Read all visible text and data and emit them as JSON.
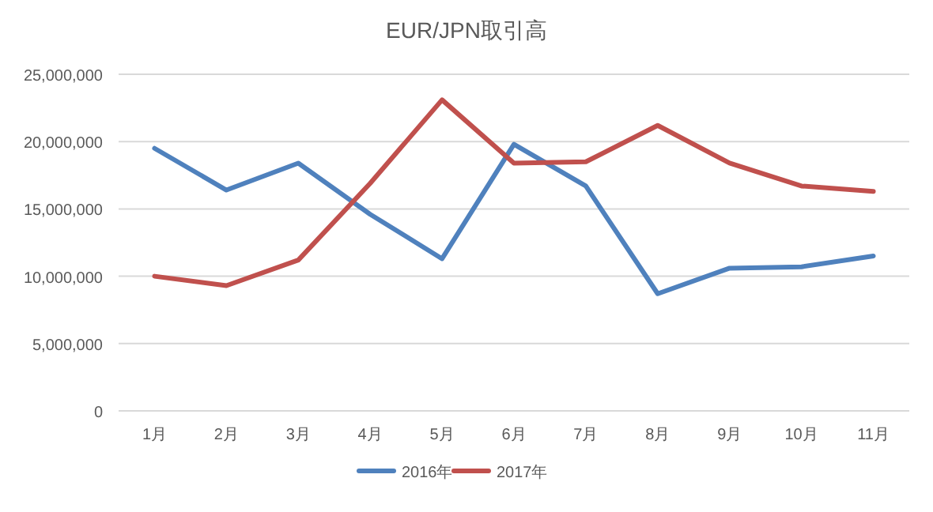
{
  "chart_data": {
    "type": "line",
    "title": "EUR/JPN取引高",
    "categories": [
      "1月",
      "2月",
      "3月",
      "4月",
      "5月",
      "6月",
      "7月",
      "8月",
      "9月",
      "10月",
      "11月"
    ],
    "series": [
      {
        "name": "2016年",
        "color": "#4f81bd",
        "values": [
          19500000,
          16400000,
          18400000,
          14600000,
          11300000,
          19800000,
          16700000,
          8700000,
          10600000,
          10700000,
          11500000
        ]
      },
      {
        "name": "2017年",
        "color": "#c0504d",
        "values": [
          10000000,
          9300000,
          11200000,
          16900000,
          23100000,
          18400000,
          18500000,
          21200000,
          18400000,
          16700000,
          16300000
        ]
      }
    ],
    "ylim": [
      0,
      25000000
    ],
    "yticks": [
      0,
      {
        "value": 5000000,
        "label": "5,000,000"
      },
      {
        "value": 10000000,
        "label": "10,000,000"
      },
      {
        "value": 15000000,
        "label": "15,000,000"
      },
      {
        "value": 20000000,
        "label": "20,000,000"
      },
      {
        "value": 25000000,
        "label": "25,000,000"
      }
    ],
    "grid": "y",
    "legend": "bottom",
    "marker": "none",
    "line_style": "solid"
  }
}
